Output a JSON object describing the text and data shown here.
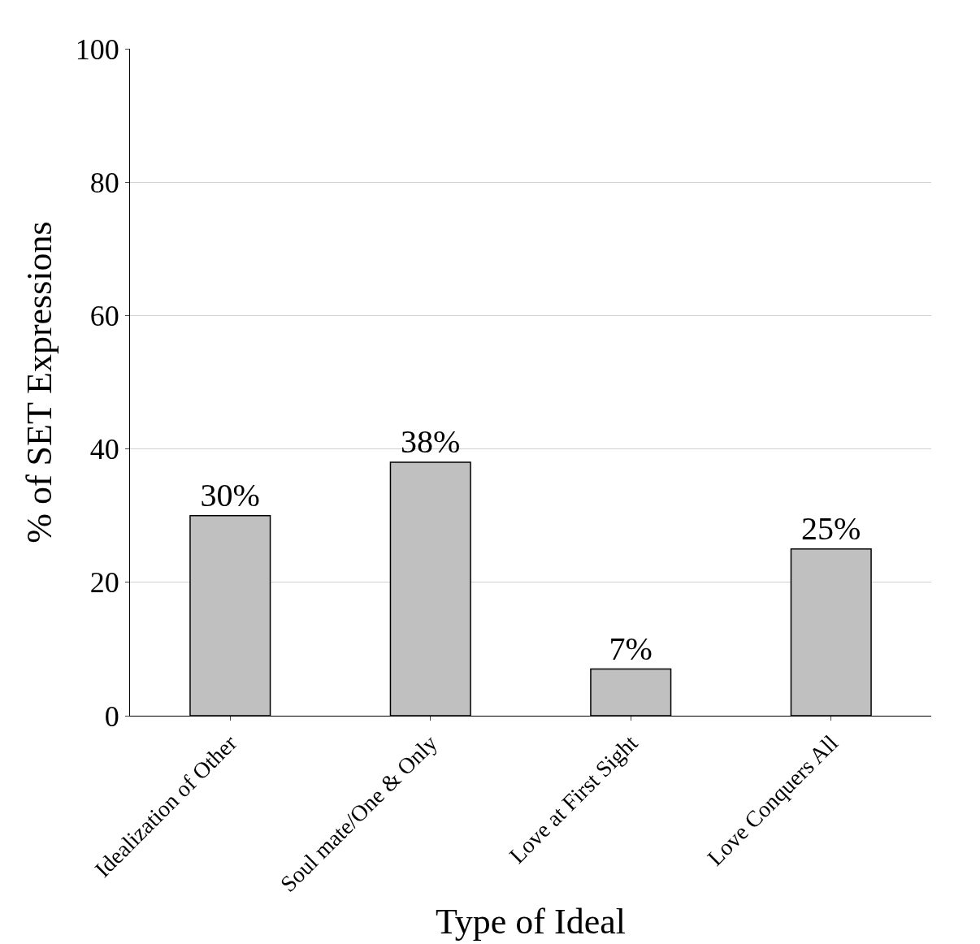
{
  "chart_data": {
    "type": "bar",
    "xlabel": "Type of Ideal",
    "ylabel": "% of SET Expressions",
    "categories": [
      "Idealization of Other",
      "Soul mate/One & Only",
      "Love at First Sight",
      "Love Conquers All"
    ],
    "values": [
      30,
      38,
      7,
      25
    ],
    "value_labels": [
      "30%",
      "38%",
      "7%",
      "25%"
    ],
    "color": "#c0c0c0",
    "ylim": [
      0,
      100
    ],
    "yticks": [
      0,
      20,
      40,
      60,
      80,
      100
    ],
    "grid": "y"
  }
}
